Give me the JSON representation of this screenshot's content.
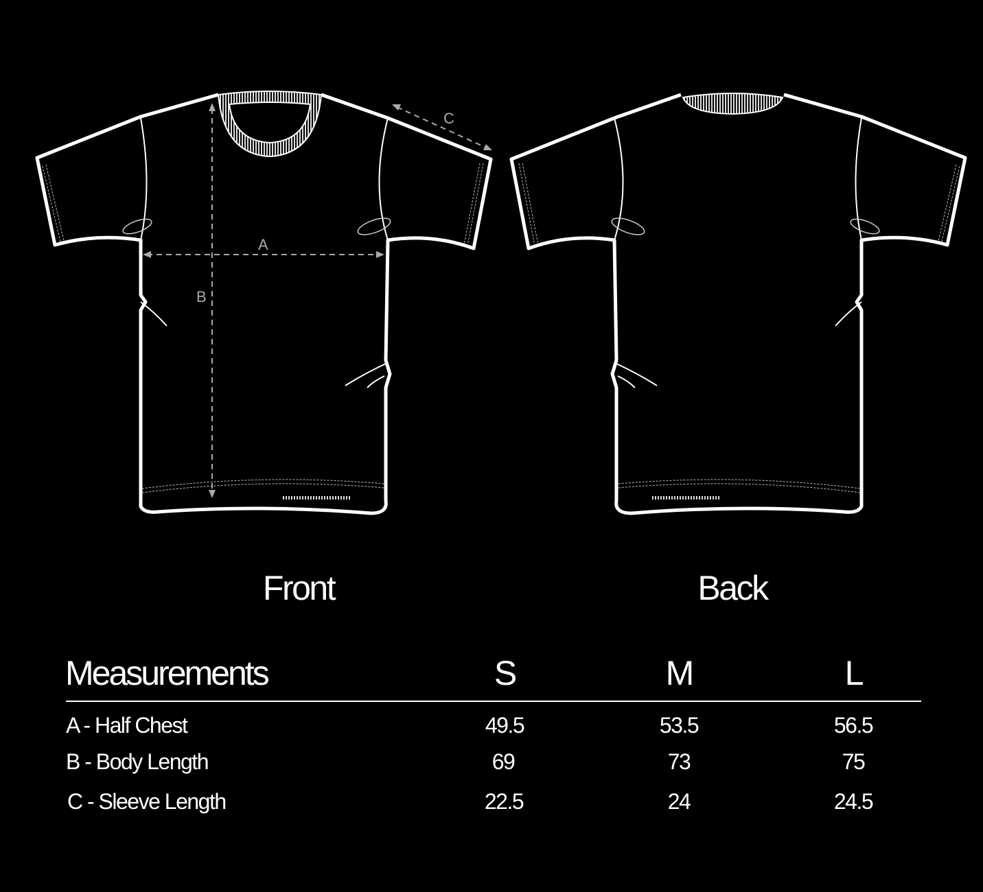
{
  "diagram": {
    "views": [
      {
        "label": "Front"
      },
      {
        "label": "Back"
      }
    ],
    "dimension_markers": [
      "A",
      "B",
      "C"
    ],
    "colors": {
      "background": "#000000",
      "outline": "#ffffff",
      "dimension_lines": "#aaaaaa"
    }
  },
  "table": {
    "header": "Measurements",
    "sizes": [
      "S",
      "M",
      "L"
    ],
    "rows": [
      {
        "label": "A - Half Chest",
        "values": [
          "49.5",
          "53.5",
          "56.5"
        ]
      },
      {
        "label": "B - Body Length",
        "values": [
          "69",
          "73",
          "75"
        ]
      },
      {
        "label": "C - Sleeve Length",
        "values": [
          "22.5",
          "24",
          "24.5"
        ]
      }
    ]
  }
}
